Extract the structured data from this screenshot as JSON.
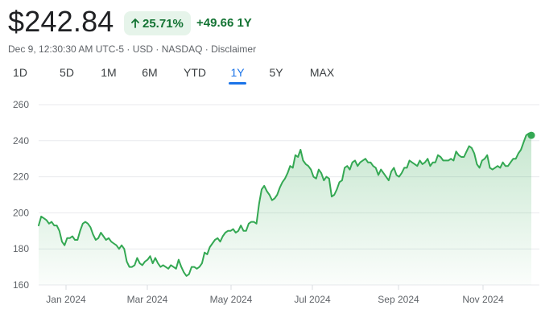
{
  "quote": {
    "price": "$242.84",
    "percent_change": "25.71%",
    "abs_change": "+49.66 1Y",
    "meta_text": "Dec 9, 12:30:30 AM UTC-5 · USD · NASDAQ · ",
    "disclaimer": "Disclaimer"
  },
  "ranges": [
    "1D",
    "5D",
    "1M",
    "6M",
    "YTD",
    "1Y",
    "5Y",
    "MAX"
  ],
  "selected_range": "1Y",
  "colors": {
    "up": "#34a853",
    "up_text": "#137333",
    "accent": "#1a73e8",
    "grid": "#e8eaed"
  },
  "icons": {
    "percent_arrow": "arrow-up-icon"
  },
  "chart_data": {
    "type": "area",
    "ylim": [
      160,
      260
    ],
    "yticks": [
      260,
      240,
      220,
      200,
      180,
      160
    ],
    "xticks": [
      "Jan 2024",
      "Mar 2024",
      "May 2024",
      "Jul 2024",
      "Sep 2024",
      "Nov 2024"
    ],
    "grid": true,
    "series": [
      {
        "values": [
          193,
          198,
          197,
          196,
          194,
          195,
          193,
          193,
          190,
          184,
          182,
          186,
          186,
          187,
          185,
          185,
          190,
          194,
          195,
          194,
          192,
          188,
          185,
          186,
          189,
          187,
          185,
          186,
          184,
          183,
          182,
          180,
          182,
          180,
          173,
          170,
          170,
          171,
          175,
          172,
          171,
          173,
          174,
          176,
          172,
          175,
          172,
          170,
          171,
          170,
          169,
          171,
          170,
          169,
          174,
          170,
          167,
          165,
          166,
          170,
          170,
          169,
          170,
          172,
          178,
          177,
          181,
          183,
          185,
          186,
          184,
          187,
          189,
          190,
          190,
          191,
          189,
          190,
          193,
          190,
          190,
          194,
          195,
          195,
          194,
          205,
          213,
          215,
          212,
          210,
          207,
          208,
          210,
          214,
          217,
          219,
          222,
          226,
          225,
          232,
          231,
          235,
          229,
          227,
          226,
          224,
          220,
          219,
          224,
          222,
          218,
          220,
          219,
          209,
          210,
          213,
          217,
          218,
          225,
          226,
          224,
          228,
          229,
          226,
          228,
          229,
          230,
          228,
          228,
          226,
          225,
          221,
          224,
          222,
          220,
          218,
          223,
          225,
          221,
          220,
          222,
          225,
          225,
          229,
          228,
          227,
          226,
          229,
          227,
          228,
          230,
          226,
          228,
          228,
          232,
          231,
          229,
          229,
          229,
          230,
          229,
          234,
          232,
          231,
          231,
          234,
          237,
          236,
          233,
          227,
          225,
          229,
          230,
          232,
          225,
          224,
          225,
          226,
          225,
          228,
          226,
          226,
          228,
          230,
          230,
          233,
          235,
          239,
          243,
          244,
          243
        ]
      }
    ]
  }
}
